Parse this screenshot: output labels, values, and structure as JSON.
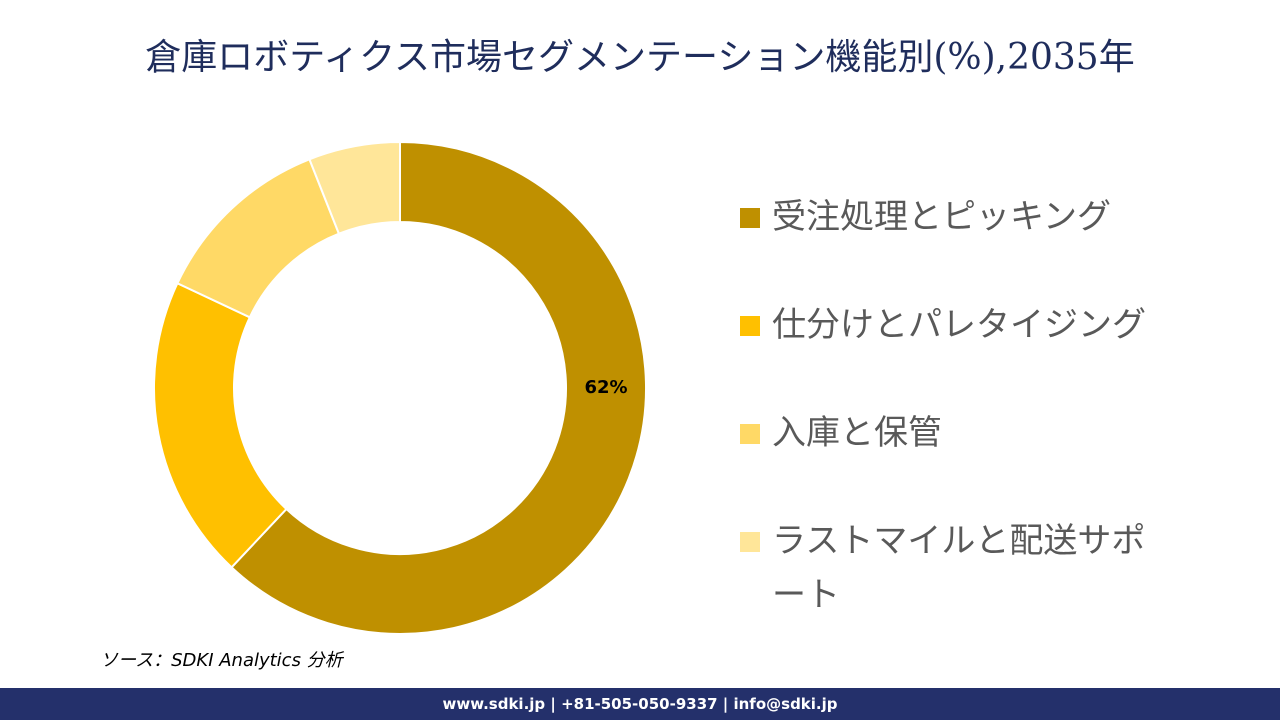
{
  "chart_data": {
    "type": "donut",
    "title": "倉庫ロボティクス市場セグメンテーション機能別(%),2035年",
    "categories": [
      "受注処理とピッキング",
      "仕分けとパレタイジング",
      "入庫と保管",
      "ラストマイルと配送サポート"
    ],
    "values": [
      62,
      20,
      12,
      6
    ],
    "value_labels": [
      "62%",
      null,
      null,
      null
    ],
    "colors": [
      "#bf9000",
      "#ffc000",
      "#ffd966",
      "#ffe699"
    ],
    "source": "ソース：SDKI Analytics 分析",
    "footer": "www.sdki.jp | +81-505-050-9337 | info@sdki.jp"
  }
}
